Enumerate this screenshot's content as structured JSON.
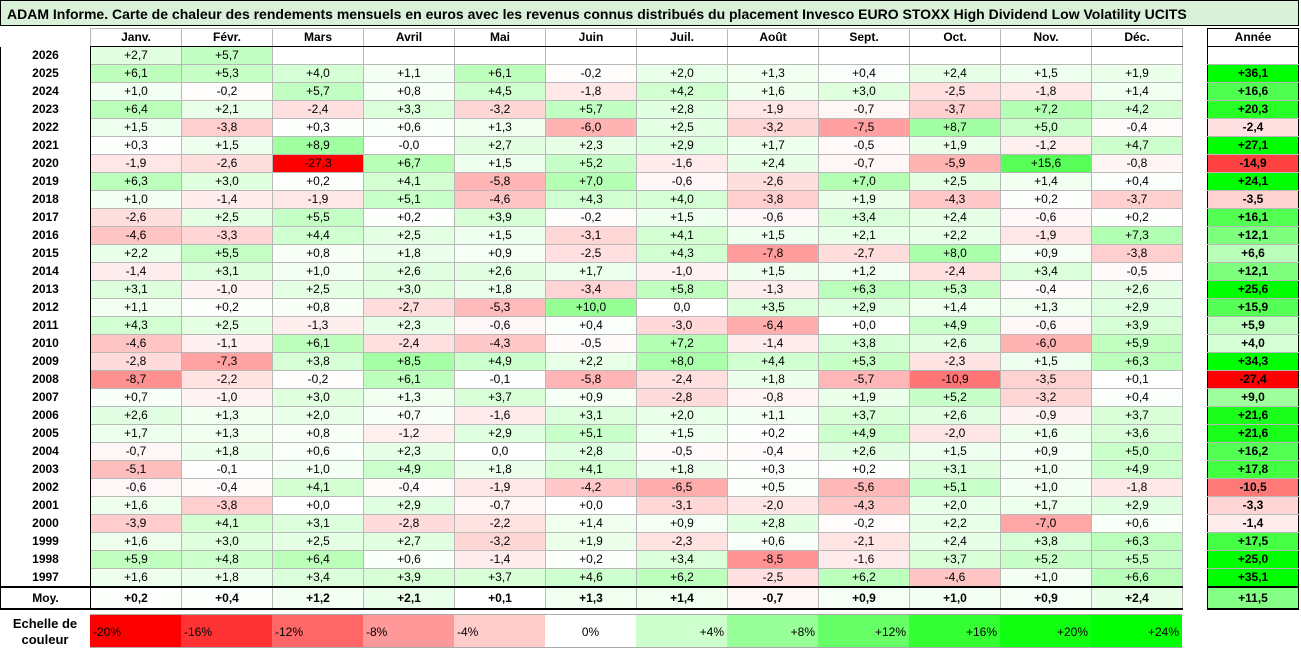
{
  "title": "ADAM Informe. Carte de chaleur des rendements mensuels en euros avec les revenus connus distribués du placement Invesco EURO STOXX High Dividend Low Volatility UCITS",
  "chart_data": {
    "type": "heatmap",
    "title": "ADAM Informe. Carte de chaleur des rendements mensuels en euros avec les revenus connus distribués du placement Invesco EURO STOXX High Dividend Low Volatility UCITS",
    "columns": [
      "Janv.",
      "Févr.",
      "Mars",
      "Avril",
      "Mai",
      "Juin",
      "Juil.",
      "Août",
      "Sept.",
      "Oct.",
      "Nov.",
      "Déc."
    ],
    "annual_label": "Année",
    "rows": [
      {
        "year": "2026",
        "values": [
          "+2,7",
          "+5,7",
          null,
          null,
          null,
          null,
          null,
          null,
          null,
          null,
          null,
          null
        ],
        "annual": null
      },
      {
        "year": "2025",
        "values": [
          "+6,1",
          "+5,3",
          "+4,0",
          "+1,1",
          "+6,1",
          "-0,2",
          "+2,0",
          "+1,3",
          "+0,4",
          "+2,4",
          "+1,5",
          "+1,9"
        ],
        "annual": "+36,1"
      },
      {
        "year": "2024",
        "values": [
          "+1,0",
          "-0,2",
          "+5,7",
          "+0,8",
          "+4,5",
          "-1,8",
          "+4,2",
          "+1,6",
          "+3,0",
          "-2,5",
          "-1,8",
          "+1,4"
        ],
        "annual": "+16,6"
      },
      {
        "year": "2023",
        "values": [
          "+6,4",
          "+2,1",
          "-2,4",
          "+3,3",
          "-3,2",
          "+5,7",
          "+2,8",
          "-1,9",
          "-0,7",
          "-3,7",
          "+7,2",
          "+4,2"
        ],
        "annual": "+20,3"
      },
      {
        "year": "2022",
        "values": [
          "+1,5",
          "-3,8",
          "+0,3",
          "+0,6",
          "+1,3",
          "-6,0",
          "+2,5",
          "-3,2",
          "-7,5",
          "+8,7",
          "+5,0",
          "-0,4"
        ],
        "annual": "-2,4"
      },
      {
        "year": "2021",
        "values": [
          "+0,3",
          "+1,5",
          "+8,9",
          "-0,0",
          "+2,7",
          "+2,3",
          "+2,9",
          "+1,7",
          "-0,5",
          "+1,9",
          "-1,2",
          "+4,7"
        ],
        "annual": "+27,1"
      },
      {
        "year": "2020",
        "values": [
          "-1,9",
          "-2,6",
          "-27,3",
          "+6,7",
          "+1,5",
          "+5,2",
          "-1,6",
          "+2,4",
          "-0,7",
          "-5,9",
          "+15,6",
          "-0,8"
        ],
        "annual": "-14,9"
      },
      {
        "year": "2019",
        "values": [
          "+6,3",
          "+3,0",
          "+0,2",
          "+4,1",
          "-5,8",
          "+7,0",
          "-0,6",
          "-2,6",
          "+7,0",
          "+2,5",
          "+1,4",
          "+0,4"
        ],
        "annual": "+24,1"
      },
      {
        "year": "2018",
        "values": [
          "+1,0",
          "-1,4",
          "-1,9",
          "+5,1",
          "-4,6",
          "+4,3",
          "+4,0",
          "-3,8",
          "+1,9",
          "-4,3",
          "+0,2",
          "-3,7"
        ],
        "annual": "-3,5"
      },
      {
        "year": "2017",
        "values": [
          "-2,6",
          "+2,5",
          "+5,5",
          "+0,2",
          "+3,9",
          "-0,2",
          "+1,5",
          "-0,6",
          "+3,4",
          "+2,4",
          "-0,6",
          "+0,2"
        ],
        "annual": "+16,1"
      },
      {
        "year": "2016",
        "values": [
          "-4,6",
          "-3,3",
          "+4,4",
          "+2,5",
          "+1,5",
          "-3,1",
          "+4,1",
          "+1,5",
          "+2,1",
          "+2,2",
          "-1,9",
          "+7,3"
        ],
        "annual": "+12,1"
      },
      {
        "year": "2015",
        "values": [
          "+2,2",
          "+5,5",
          "+0,8",
          "+1,8",
          "+0,9",
          "-2,5",
          "+4,3",
          "-7,8",
          "-2,7",
          "+8,0",
          "+0,9",
          "-3,8"
        ],
        "annual": "+6,6"
      },
      {
        "year": "2014",
        "values": [
          "-1,4",
          "+3,1",
          "+1,0",
          "+2,6",
          "+2,6",
          "+1,7",
          "-1,0",
          "+1,5",
          "+1,2",
          "-2,4",
          "+3,4",
          "-0,5"
        ],
        "annual": "+12,1"
      },
      {
        "year": "2013",
        "values": [
          "+3,1",
          "-1,0",
          "+2,5",
          "+3,0",
          "+1,8",
          "-3,4",
          "+5,8",
          "-1,3",
          "+6,3",
          "+5,3",
          "-0,4",
          "+2,6"
        ],
        "annual": "+25,6"
      },
      {
        "year": "2012",
        "values": [
          "+1,1",
          "+0,2",
          "+0,8",
          "-2,7",
          "-5,3",
          "+10,0",
          "0,0",
          "+3,5",
          "+2,9",
          "+1,4",
          "+1,3",
          "+2,9"
        ],
        "annual": "+15,9"
      },
      {
        "year": "2011",
        "values": [
          "+4,3",
          "+2,5",
          "-1,3",
          "+2,3",
          "-0,6",
          "+0,4",
          "-3,0",
          "-6,4",
          "+0,0",
          "+4,9",
          "-0,6",
          "+3,9"
        ],
        "annual": "+5,9"
      },
      {
        "year": "2010",
        "values": [
          "-4,6",
          "-1,1",
          "+6,1",
          "-2,4",
          "-4,3",
          "-0,5",
          "+7,2",
          "-1,4",
          "+3,8",
          "+2,6",
          "-6,0",
          "+5,9"
        ],
        "annual": "+4,0"
      },
      {
        "year": "2009",
        "values": [
          "-2,8",
          "-7,3",
          "+3,8",
          "+8,5",
          "+4,9",
          "+2,2",
          "+8,0",
          "+4,4",
          "+5,3",
          "-2,3",
          "+1,5",
          "+6,3"
        ],
        "annual": "+34,3"
      },
      {
        "year": "2008",
        "values": [
          "-8,7",
          "-2,2",
          "-0,2",
          "+6,1",
          "-0,1",
          "-5,8",
          "-2,4",
          "+1,8",
          "-5,7",
          "-10,9",
          "-3,5",
          "+0,1"
        ],
        "annual": "-27,4"
      },
      {
        "year": "2007",
        "values": [
          "+0,7",
          "-1,0",
          "+3,0",
          "+1,3",
          "+3,7",
          "+0,9",
          "-2,8",
          "-0,8",
          "+1,9",
          "+5,2",
          "-3,2",
          "+0,4"
        ],
        "annual": "+9,0"
      },
      {
        "year": "2006",
        "values": [
          "+2,6",
          "+1,3",
          "+2,0",
          "+0,7",
          "-1,6",
          "+3,1",
          "+2,0",
          "+1,1",
          "+3,7",
          "+2,6",
          "-0,9",
          "+3,7"
        ],
        "annual": "+21,6"
      },
      {
        "year": "2005",
        "values": [
          "+1,7",
          "+1,3",
          "+0,8",
          "-1,2",
          "+2,9",
          "+5,1",
          "+1,5",
          "+0,2",
          "+4,9",
          "-2,0",
          "+1,6",
          "+3,6"
        ],
        "annual": "+21,6"
      },
      {
        "year": "2004",
        "values": [
          "-0,7",
          "+1,8",
          "+0,6",
          "+2,3",
          "0,0",
          "+2,8",
          "-0,5",
          "-0,4",
          "+2,6",
          "+1,5",
          "+0,9",
          "+5,0"
        ],
        "annual": "+16,2"
      },
      {
        "year": "2003",
        "values": [
          "-5,1",
          "-0,1",
          "+1,0",
          "+4,9",
          "+1,8",
          "+4,1",
          "+1,8",
          "+0,3",
          "+0,2",
          "+3,1",
          "+1,0",
          "+4,9"
        ],
        "annual": "+17,8"
      },
      {
        "year": "2002",
        "values": [
          "-0,6",
          "-0,4",
          "+4,1",
          "-0,4",
          "-1,9",
          "-4,2",
          "-6,5",
          "+0,5",
          "-5,6",
          "+5,1",
          "+1,0",
          "-1,8"
        ],
        "annual": "-10,5"
      },
      {
        "year": "2001",
        "values": [
          "+1,6",
          "-3,8",
          "+0,0",
          "+2,9",
          "-0,7",
          "+0,0",
          "-3,1",
          "-2,0",
          "-4,3",
          "+2,0",
          "+1,7",
          "+2,9"
        ],
        "annual": "-3,3"
      },
      {
        "year": "2000",
        "values": [
          "-3,9",
          "+4,1",
          "+3,1",
          "-2,8",
          "-2,2",
          "+1,4",
          "+0,9",
          "+2,8",
          "-0,2",
          "+2,2",
          "-7,0",
          "+0,6"
        ],
        "annual": "-1,4"
      },
      {
        "year": "1999",
        "values": [
          "+1,6",
          "+3,0",
          "+2,5",
          "+2,7",
          "-3,2",
          "+1,9",
          "-2,3",
          "+0,6",
          "-2,1",
          "+2,4",
          "+3,8",
          "+6,3"
        ],
        "annual": "+17,5"
      },
      {
        "year": "1998",
        "values": [
          "+5,9",
          "+4,8",
          "+6,4",
          "+0,6",
          "-1,4",
          "+0,2",
          "+3,4",
          "-8,5",
          "-1,6",
          "+3,7",
          "+5,2",
          "+5,5"
        ],
        "annual": "+25,0"
      },
      {
        "year": "1997",
        "values": [
          "+1,6",
          "+1,8",
          "+3,4",
          "+3,9",
          "+3,7",
          "+4,6",
          "+6,2",
          "-2,5",
          "+6,2",
          "-4,6",
          "+1,0",
          "+6,6"
        ],
        "annual": "+35,1"
      }
    ],
    "average": {
      "label": "Moy.",
      "values": [
        "+0,2",
        "+0,4",
        "+1,2",
        "+2,1",
        "+0,1",
        "+1,3",
        "+1,4",
        "-0,7",
        "+0,9",
        "+1,0",
        "+0,9",
        "+2,4"
      ],
      "annual": "+11,5"
    },
    "scale": {
      "label_line1": "Echelle de",
      "label_line2": "couleur",
      "stops": [
        {
          "label": "-20%",
          "color": "#ff0000",
          "align": "left"
        },
        {
          "label": "-16%",
          "color": "#ff3333",
          "align": "left"
        },
        {
          "label": "-12%",
          "color": "#ff6666",
          "align": "left"
        },
        {
          "label": "-8%",
          "color": "#ff9999",
          "align": "left"
        },
        {
          "label": "-4%",
          "color": "#ffcccc",
          "align": "left"
        },
        {
          "label": "0%",
          "color": "#ffffff",
          "align": "center"
        },
        {
          "label": "+4%",
          "color": "#ccffcc",
          "align": "right"
        },
        {
          "label": "+8%",
          "color": "#99ff99",
          "align": "right"
        },
        {
          "label": "+12%",
          "color": "#66ff66",
          "align": "right"
        },
        {
          "label": "+16%",
          "color": "#33ff33",
          "align": "right"
        },
        {
          "label": "+20%",
          "color": "#11ff11",
          "align": "right"
        },
        {
          "label": "+24%",
          "color": "#00ff00",
          "align": "right"
        }
      ]
    }
  }
}
